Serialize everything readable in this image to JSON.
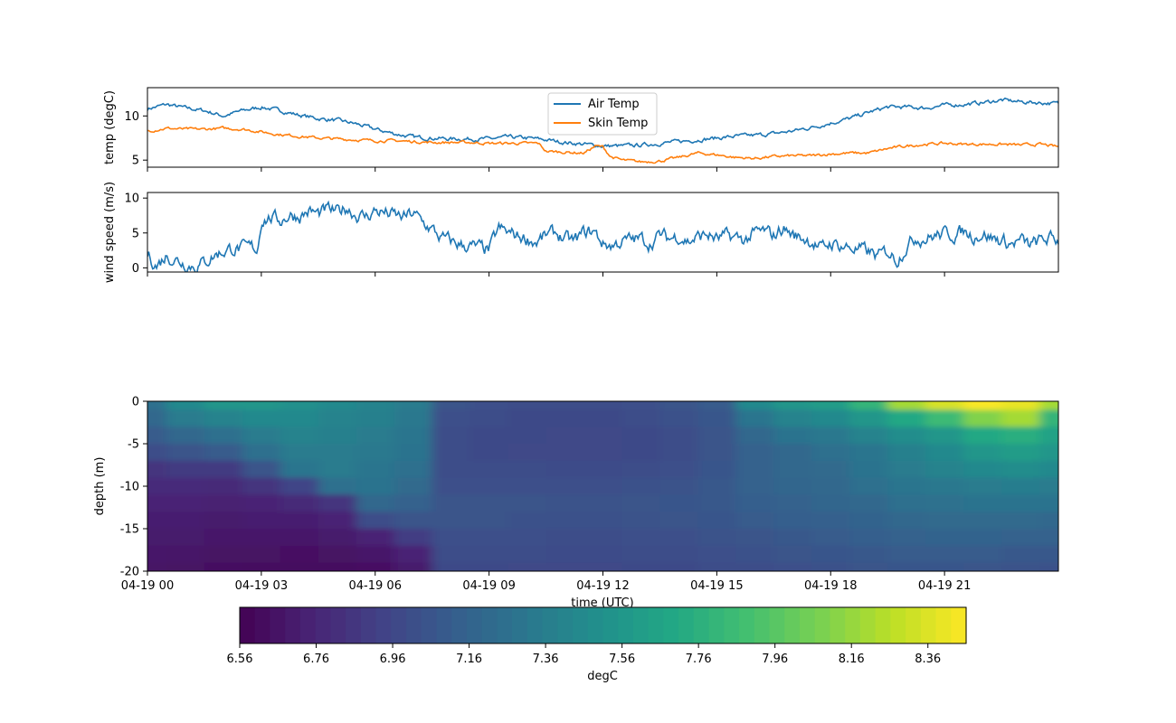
{
  "chart_data": [
    {
      "type": "line",
      "ylabel": "temp (degC)",
      "x_range_hours": [
        0,
        24
      ],
      "ylim": [
        4.2,
        13.2
      ],
      "yticks": [
        5,
        10
      ],
      "legend": {
        "placement": "top-center",
        "entries": [
          "Air Temp",
          "Skin Temp"
        ]
      },
      "series": [
        {
          "name": "Air Temp",
          "color": "#1f77b4",
          "x": [
            0,
            0.5,
            1,
            1.5,
            2,
            2.5,
            3,
            3.5,
            4,
            4.5,
            5,
            5.5,
            6,
            6.5,
            7,
            7.5,
            8,
            8.5,
            9,
            9.5,
            10,
            10.5,
            11,
            11.5,
            12,
            12.5,
            13,
            13.5,
            14,
            14.5,
            15,
            15.5,
            16,
            16.5,
            17,
            17.5,
            18,
            18.5,
            19,
            19.5,
            20,
            20.5,
            21,
            21.5,
            22,
            22.5,
            23,
            23.5,
            24
          ],
          "values": [
            10.8,
            11.3,
            10.9,
            10.6,
            10.0,
            10.6,
            11.0,
            10.6,
            10.1,
            9.7,
            9.5,
            9.1,
            8.5,
            8.0,
            7.6,
            7.5,
            7.4,
            7.4,
            7.4,
            7.6,
            7.5,
            7.3,
            7.0,
            6.8,
            6.6,
            6.6,
            6.7,
            6.9,
            7.1,
            7.3,
            7.5,
            7.7,
            7.8,
            8.0,
            8.3,
            8.7,
            9.2,
            9.7,
            10.4,
            11.0,
            11.0,
            10.9,
            11.2,
            11.3,
            11.5,
            11.8,
            11.6,
            11.5,
            11.4
          ]
        },
        {
          "name": "Skin Temp",
          "color": "#ff7f0e",
          "x": [
            0,
            0.5,
            1,
            1.5,
            2,
            2.5,
            3,
            3.5,
            4,
            4.5,
            5,
            5.5,
            6,
            6.5,
            7,
            7.5,
            8,
            8.5,
            9,
            9.5,
            10,
            10.3,
            10.5,
            11,
            11.5,
            11.8,
            12,
            12.2,
            12.5,
            13,
            13.5,
            14,
            14.5,
            15,
            15.5,
            16,
            16.5,
            17,
            17.5,
            18,
            18.5,
            19,
            19.5,
            20,
            20.5,
            21,
            21.5,
            22,
            22.5,
            23,
            23.5,
            24
          ],
          "values": [
            8.3,
            8.6,
            8.5,
            8.5,
            8.6,
            8.5,
            8.2,
            7.9,
            7.7,
            7.5,
            7.4,
            7.3,
            7.2,
            7.2,
            7.1,
            7.0,
            7.0,
            7.0,
            6.9,
            6.9,
            6.9,
            6.9,
            6.0,
            5.9,
            5.8,
            6.6,
            6.5,
            5.4,
            5.0,
            4.8,
            4.9,
            5.3,
            5.8,
            5.6,
            5.3,
            5.2,
            5.4,
            5.5,
            5.5,
            5.7,
            5.8,
            5.8,
            6.3,
            6.6,
            6.8,
            6.9,
            6.8,
            6.8,
            6.8,
            6.7,
            6.8,
            6.5
          ]
        }
      ]
    },
    {
      "type": "line",
      "ylabel": "wind speed (m/s)",
      "x_range_hours": [
        0,
        24
      ],
      "ylim": [
        -0.6,
        10.8
      ],
      "yticks": [
        0,
        5,
        10
      ],
      "series": [
        {
          "name": "",
          "color": "#1f77b4",
          "x": [
            0,
            0.25,
            0.5,
            0.75,
            1,
            1.25,
            1.5,
            1.75,
            2,
            2.25,
            2.5,
            2.75,
            2.9,
            3,
            3.25,
            3.5,
            3.75,
            4,
            4.25,
            4.5,
            4.75,
            5,
            5.25,
            5.5,
            5.75,
            6,
            6.25,
            6.5,
            6.75,
            7,
            7.25,
            7.5,
            7.75,
            8,
            8.25,
            8.5,
            8.75,
            9,
            9.25,
            9.5,
            9.75,
            10,
            10.25,
            10.5,
            10.75,
            11,
            11.25,
            11.5,
            11.75,
            12,
            12.25,
            12.5,
            12.75,
            13,
            13.25,
            13.5,
            13.75,
            14,
            14.25,
            14.5,
            14.75,
            15,
            15.25,
            15.5,
            15.75,
            16,
            16.25,
            16.5,
            16.75,
            17,
            17.25,
            17.5,
            17.75,
            18,
            18.25,
            18.5,
            18.75,
            19,
            19.25,
            19.5,
            19.75,
            20,
            20.25,
            20.5,
            20.75,
            21,
            21.25,
            21.5,
            21.75,
            22,
            22.25,
            22.5,
            22.75,
            23,
            23.25,
            23.5,
            23.75,
            24
          ],
          "values": [
            2.0,
            0.3,
            1.8,
            1.2,
            0.6,
            0.3,
            0.8,
            1.8,
            2.4,
            2.8,
            2.7,
            2.9,
            2.6,
            7.0,
            7.2,
            6.8,
            7.6,
            7.4,
            8.1,
            7.7,
            8.3,
            7.9,
            8.7,
            7.6,
            7.3,
            8.2,
            7.9,
            7.5,
            7.2,
            7.8,
            6.5,
            5.5,
            4.2,
            3.8,
            3.3,
            3.1,
            2.8,
            2.5,
            5.6,
            5.0,
            4.6,
            4.2,
            3.7,
            4.6,
            5.0,
            4.1,
            3.8,
            5.0,
            5.3,
            3.5,
            3.2,
            3.8,
            4.0,
            4.2,
            3.5,
            4.7,
            4.2,
            4.6,
            3.8,
            4.4,
            4.8,
            4.1,
            4.5,
            4.3,
            4.0,
            4.9,
            5.2,
            4.6,
            5.8,
            4.7,
            4.3,
            3.9,
            2.6,
            3.6,
            3.2,
            2.9,
            2.6,
            2.3,
            1.6,
            2.4,
            1.2,
            3.2,
            4.4,
            4.2,
            4.6,
            4.9,
            4.8,
            5.2,
            4.6,
            4.9,
            4.3,
            3.9,
            3.4,
            3.9,
            3.2,
            3.8,
            4.2,
            4.0
          ]
        }
      ]
    },
    {
      "type": "heatmap",
      "ylabel": "depth (m)",
      "xlabel": "time (UTC)",
      "ylim": [
        -20,
        0
      ],
      "yticks": [
        0,
        -5,
        -10,
        -15,
        -20
      ],
      "x_range_hours": [
        0,
        24
      ],
      "xtick_hours": [
        0,
        3,
        6,
        9,
        12,
        15,
        18,
        21
      ],
      "xtick_labels": [
        "04-19 00",
        "04-19 03",
        "04-19 06",
        "04-19 09",
        "04-19 12",
        "04-19 15",
        "04-19 18",
        "04-19 21"
      ],
      "time_hours": [
        0,
        1,
        2,
        3,
        4,
        5,
        6,
        7,
        8,
        9,
        10,
        11,
        12,
        13,
        14,
        15,
        16,
        17,
        18,
        19,
        20,
        21,
        22,
        23,
        24
      ],
      "depth_m": [
        0,
        -2,
        -4,
        -6,
        -8,
        -10,
        -12,
        -14,
        -16,
        -18,
        -20
      ],
      "values_degC": [
        [
          7.25,
          7.2,
          7.1,
          7.0,
          6.85,
          6.8,
          6.75,
          6.72,
          6.7,
          6.68,
          6.66
        ],
        [
          7.45,
          7.35,
          7.2,
          7.05,
          6.88,
          6.8,
          6.75,
          6.72,
          6.7,
          6.67,
          6.65
        ],
        [
          7.55,
          7.4,
          7.25,
          7.1,
          6.88,
          6.78,
          6.73,
          6.7,
          6.68,
          6.65,
          6.63
        ],
        [
          7.55,
          7.45,
          7.35,
          7.25,
          7.05,
          6.85,
          6.75,
          6.72,
          6.68,
          6.65,
          6.62
        ],
        [
          7.5,
          7.45,
          7.4,
          7.35,
          7.3,
          6.95,
          6.78,
          6.72,
          6.68,
          6.64,
          6.62
        ],
        [
          7.45,
          7.4,
          7.38,
          7.35,
          7.35,
          7.25,
          6.85,
          6.75,
          6.7,
          6.65,
          6.62
        ],
        [
          7.4,
          7.38,
          7.35,
          7.33,
          7.3,
          7.28,
          7.2,
          7.0,
          6.75,
          6.68,
          6.64
        ],
        [
          7.35,
          7.32,
          7.3,
          7.28,
          7.25,
          7.22,
          7.15,
          7.05,
          6.9,
          6.75,
          6.7
        ],
        [
          7.05,
          7.02,
          7.0,
          7.0,
          7.0,
          7.02,
          7.05,
          7.05,
          7.02,
          7.0,
          6.98
        ],
        [
          7.02,
          7.0,
          6.98,
          6.98,
          7.0,
          7.02,
          7.05,
          7.05,
          7.02,
          7.0,
          6.98
        ],
        [
          7.0,
          6.98,
          6.98,
          6.97,
          7.0,
          7.02,
          7.05,
          7.03,
          7.02,
          7.0,
          6.97
        ],
        [
          7.0,
          6.98,
          6.97,
          6.97,
          6.99,
          7.02,
          7.04,
          7.03,
          7.01,
          6.99,
          6.97
        ],
        [
          7.0,
          6.98,
          6.97,
          6.97,
          6.99,
          7.02,
          7.04,
          7.03,
          7.01,
          6.99,
          6.97
        ],
        [
          7.02,
          7.0,
          6.98,
          6.98,
          7.0,
          7.03,
          7.05,
          7.04,
          7.02,
          7.0,
          6.98
        ],
        [
          7.05,
          7.03,
          7.0,
          7.0,
          7.02,
          7.04,
          7.06,
          7.05,
          7.02,
          7.0,
          6.98
        ],
        [
          7.1,
          7.07,
          7.05,
          7.05,
          7.06,
          7.08,
          7.08,
          7.06,
          7.04,
          7.02,
          7.0
        ],
        [
          7.45,
          7.3,
          7.2,
          7.15,
          7.15,
          7.15,
          7.12,
          7.1,
          7.05,
          7.03,
          7.0
        ],
        [
          7.55,
          7.4,
          7.28,
          7.2,
          7.2,
          7.18,
          7.15,
          7.12,
          7.08,
          7.05,
          7.02
        ],
        [
          7.6,
          7.45,
          7.32,
          7.25,
          7.22,
          7.2,
          7.18,
          7.14,
          7.1,
          7.06,
          7.03
        ],
        [
          7.8,
          7.55,
          7.4,
          7.3,
          7.28,
          7.25,
          7.2,
          7.16,
          7.12,
          7.08,
          7.05
        ],
        [
          8.2,
          7.7,
          7.48,
          7.38,
          7.35,
          7.3,
          7.25,
          7.2,
          7.15,
          7.1,
          7.06
        ],
        [
          8.35,
          7.85,
          7.55,
          7.45,
          7.4,
          7.32,
          7.27,
          7.22,
          7.16,
          7.1,
          7.06
        ],
        [
          8.45,
          8.1,
          7.7,
          7.55,
          7.45,
          7.35,
          7.28,
          7.22,
          7.16,
          7.1,
          7.05
        ],
        [
          8.4,
          8.2,
          7.75,
          7.6,
          7.48,
          7.36,
          7.28,
          7.22,
          7.15,
          7.08,
          7.04
        ],
        [
          8.2,
          7.8,
          7.65,
          7.55,
          7.45,
          7.35,
          7.28,
          7.2,
          7.15,
          7.08,
          7.03
        ]
      ],
      "colorbar": {
        "label": "degC",
        "range": [
          6.56,
          8.46
        ],
        "ticks": [
          "6.56",
          "6.76",
          "6.96",
          "7.16",
          "7.36",
          "7.56",
          "7.76",
          "7.96",
          "8.16",
          "8.36"
        ],
        "colormap": "viridis"
      }
    }
  ]
}
